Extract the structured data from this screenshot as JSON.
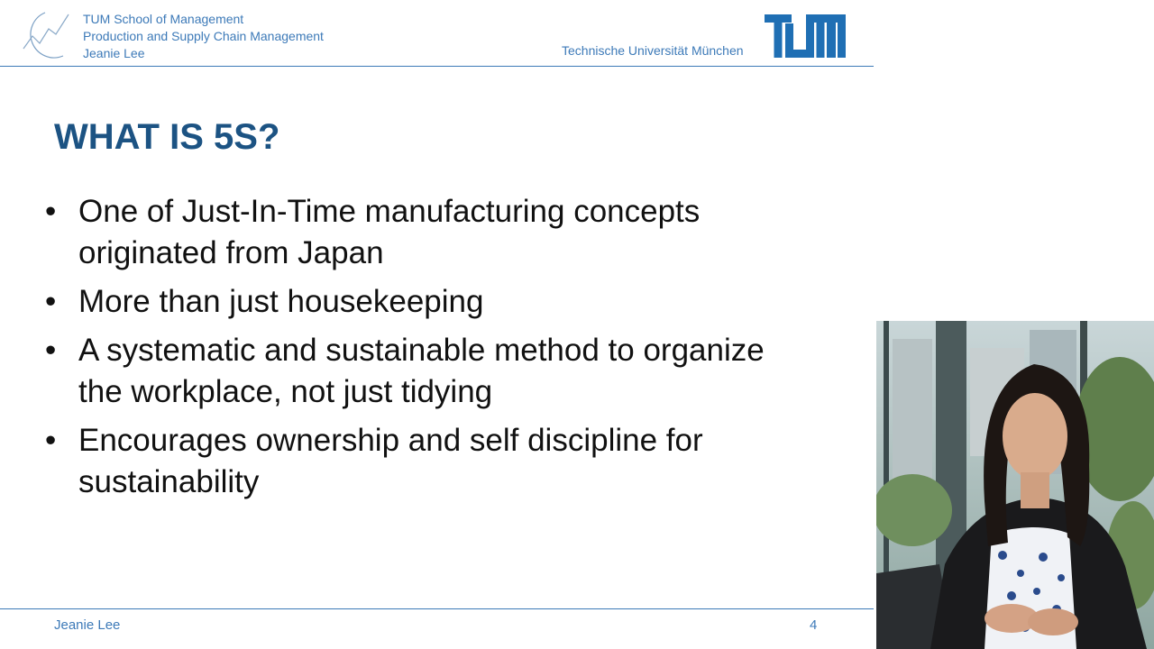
{
  "header": {
    "school": "TUM School of Management",
    "chair": "Production and Supply Chain Management",
    "author": "Jeanie Lee",
    "university": "Technische Universität München"
  },
  "slide": {
    "title": "WHAT IS 5S?",
    "bullets": [
      "One of Just-In-Time manufacturing concepts originated from Japan",
      "More than just housekeeping",
      "A systematic and sustainable method to organize the workplace, not just tidying",
      "Encourages ownership and self discipline for sustainability"
    ],
    "bullet_glyph": "•"
  },
  "footer": {
    "presenter": "Jeanie Lee",
    "page": "4"
  },
  "colors": {
    "accent": "#3d7ab8",
    "title": "#1c5383",
    "text": "#111111"
  }
}
